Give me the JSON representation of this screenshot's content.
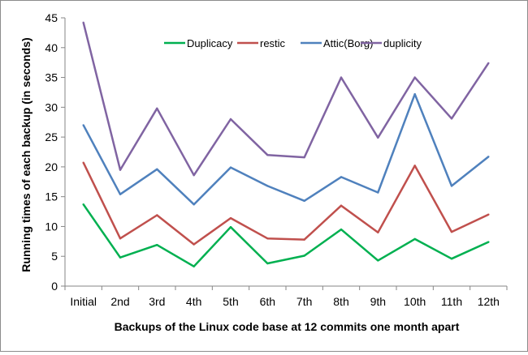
{
  "chart_data": {
    "type": "line",
    "title": "",
    "xlabel": "Backups of the Linux code base at 12 commits one month apart",
    "ylabel": "Running times of each backup  (in seconds)",
    "ylim": [
      0,
      45
    ],
    "yticks": [
      0,
      5,
      10,
      15,
      20,
      25,
      30,
      35,
      40,
      45
    ],
    "grid": false,
    "legend": "top",
    "categories": [
      "Initial",
      "2nd",
      "3rd",
      "4th",
      "5th",
      "6th",
      "7th",
      "8th",
      "9th",
      "10th",
      "11th",
      "12th"
    ],
    "series": [
      {
        "name": "Duplicacy",
        "color": "#00b050",
        "values": [
          13.7,
          4.8,
          6.9,
          3.3,
          9.9,
          3.8,
          5.1,
          9.5,
          4.3,
          7.9,
          4.6,
          7.4
        ]
      },
      {
        "name": "restic",
        "color": "#c0504d",
        "values": [
          20.7,
          8.0,
          11.9,
          7.0,
          11.4,
          8.0,
          7.8,
          13.5,
          9.0,
          20.2,
          9.1,
          12.0
        ]
      },
      {
        "name": "Attic(Borg)",
        "color": "#4f81bd",
        "values": [
          27.0,
          15.4,
          19.6,
          13.7,
          19.9,
          16.8,
          14.3,
          18.3,
          15.7,
          32.2,
          16.8,
          21.7
        ]
      },
      {
        "name": "duplicity",
        "color": "#8064a2",
        "values": [
          44.2,
          19.5,
          29.8,
          18.6,
          28.0,
          22.0,
          21.6,
          35.0,
          24.9,
          35.0,
          28.1,
          37.4
        ]
      }
    ]
  }
}
